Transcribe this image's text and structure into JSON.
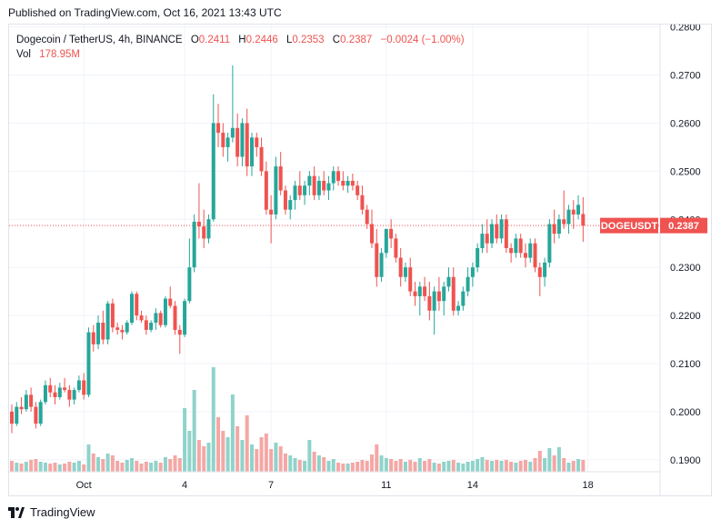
{
  "header": {
    "published": "Published on TradingView.com, Oct 16, 2021 13:43 UTC"
  },
  "legend": {
    "symbol": "Dogecoin / TetherUS, 4h, BINANCE",
    "open_label": "O",
    "open": "0.2411",
    "high_label": "H",
    "high": "0.2446",
    "low_label": "L",
    "low": "0.2353",
    "close_label": "C",
    "close": "0.2387",
    "change": "−0.0024 (−1.00%)",
    "vol_label": "Vol",
    "vol": "178.95M"
  },
  "price_tag": {
    "symbol": "DOGEUSDT",
    "price": "0.2387"
  },
  "footer": {
    "brand": "TradingView"
  },
  "colors": {
    "up": "#26a69a",
    "down": "#ef5350",
    "up_vol": "#8fd3ca",
    "down_vol": "#f4a7a5",
    "grid": "#f0f3fa"
  },
  "chart_data": {
    "type": "candlestick",
    "y_ticks": [
      "0.2800",
      "0.2700",
      "0.2600",
      "0.2500",
      "0.2400",
      "0.2300",
      "0.2200",
      "0.2100",
      "0.2000",
      "0.1900"
    ],
    "ylim": [
      0.1875,
      0.2805
    ],
    "x_ticks": [
      {
        "label": "Oct",
        "index": 15
      },
      {
        "label": "4",
        "index": 36
      },
      {
        "label": "7",
        "index": 54
      },
      {
        "label": "11",
        "index": 78
      },
      {
        "label": "14",
        "index": 96
      },
      {
        "label": "18",
        "index": 120
      }
    ],
    "last_price": 0.2387,
    "candles": [
      [
        0.2,
        0.2015,
        0.1955,
        0.1975,
        1.2
      ],
      [
        0.1975,
        0.202,
        0.197,
        0.201,
        1.0
      ],
      [
        0.201,
        0.203,
        0.1995,
        0.2005,
        0.9
      ],
      [
        0.2005,
        0.2045,
        0.2,
        0.2035,
        1.1
      ],
      [
        0.2035,
        0.205,
        0.2,
        0.201,
        1.3
      ],
      [
        0.201,
        0.202,
        0.1965,
        0.1975,
        1.4
      ],
      [
        0.1975,
        0.2025,
        0.197,
        0.202,
        1.1
      ],
      [
        0.202,
        0.2065,
        0.2015,
        0.2055,
        1.0
      ],
      [
        0.2055,
        0.207,
        0.203,
        0.204,
        0.9
      ],
      [
        0.204,
        0.2055,
        0.2015,
        0.203,
        1.0
      ],
      [
        0.203,
        0.206,
        0.2025,
        0.205,
        0.8
      ],
      [
        0.205,
        0.207,
        0.204,
        0.2045,
        0.9
      ],
      [
        0.2045,
        0.2055,
        0.201,
        0.2025,
        1.1
      ],
      [
        0.2025,
        0.205,
        0.2015,
        0.2045,
        1.0
      ],
      [
        0.2045,
        0.2075,
        0.204,
        0.2065,
        1.2
      ],
      [
        0.2065,
        0.208,
        0.2025,
        0.2035,
        0.8
      ],
      [
        0.2035,
        0.2175,
        0.203,
        0.2165,
        3.0
      ],
      [
        0.2165,
        0.218,
        0.2125,
        0.214,
        2.0
      ],
      [
        0.214,
        0.22,
        0.213,
        0.2185,
        1.6
      ],
      [
        0.2185,
        0.221,
        0.214,
        0.215,
        1.4
      ],
      [
        0.215,
        0.223,
        0.214,
        0.2225,
        2.0
      ],
      [
        0.2225,
        0.2235,
        0.2165,
        0.2175,
        1.8
      ],
      [
        0.2175,
        0.2185,
        0.216,
        0.217,
        1.2
      ],
      [
        0.217,
        0.218,
        0.215,
        0.2165,
        1.0
      ],
      [
        0.2165,
        0.219,
        0.216,
        0.2185,
        1.3
      ],
      [
        0.2185,
        0.225,
        0.218,
        0.2245,
        1.5
      ],
      [
        0.2245,
        0.225,
        0.219,
        0.22,
        1.2
      ],
      [
        0.22,
        0.221,
        0.2185,
        0.219,
        0.9
      ],
      [
        0.219,
        0.22,
        0.216,
        0.217,
        1.1
      ],
      [
        0.217,
        0.219,
        0.2165,
        0.2185,
        1.0
      ],
      [
        0.2185,
        0.2215,
        0.217,
        0.2205,
        1.2
      ],
      [
        0.2205,
        0.221,
        0.2175,
        0.218,
        1.0
      ],
      [
        0.218,
        0.224,
        0.2175,
        0.2235,
        1.6
      ],
      [
        0.2235,
        0.226,
        0.2215,
        0.222,
        1.4
      ],
      [
        0.222,
        0.223,
        0.216,
        0.217,
        1.8
      ],
      [
        0.217,
        0.218,
        0.212,
        0.216,
        1.5
      ],
      [
        0.216,
        0.2235,
        0.2155,
        0.223,
        7.0
      ],
      [
        0.223,
        0.236,
        0.2225,
        0.23,
        4.5
      ],
      [
        0.23,
        0.241,
        0.229,
        0.2395,
        9.0
      ],
      [
        0.2395,
        0.2475,
        0.236,
        0.2385,
        3.5
      ],
      [
        0.2385,
        0.242,
        0.234,
        0.236,
        2.8
      ],
      [
        0.236,
        0.241,
        0.235,
        0.24,
        3.2
      ],
      [
        0.24,
        0.266,
        0.2395,
        0.26,
        11.5
      ],
      [
        0.26,
        0.264,
        0.255,
        0.258,
        6.0
      ],
      [
        0.258,
        0.26,
        0.253,
        0.255,
        4.5
      ],
      [
        0.255,
        0.258,
        0.252,
        0.257,
        3.8
      ],
      [
        0.257,
        0.272,
        0.256,
        0.259,
        8.5
      ],
      [
        0.259,
        0.262,
        0.251,
        0.253,
        5.0
      ],
      [
        0.253,
        0.261,
        0.251,
        0.26,
        3.5
      ],
      [
        0.26,
        0.263,
        0.249,
        0.251,
        6.2
      ],
      [
        0.251,
        0.258,
        0.249,
        0.257,
        3.0
      ],
      [
        0.257,
        0.258,
        0.253,
        0.255,
        2.5
      ],
      [
        0.255,
        0.257,
        0.249,
        0.25,
        3.8
      ],
      [
        0.25,
        0.252,
        0.241,
        0.242,
        4.2
      ],
      [
        0.242,
        0.245,
        0.235,
        0.241,
        2.5
      ],
      [
        0.241,
        0.253,
        0.24,
        0.251,
        3.2
      ],
      [
        0.251,
        0.254,
        0.245,
        0.246,
        2.8
      ],
      [
        0.246,
        0.247,
        0.241,
        0.242,
        2.0
      ],
      [
        0.242,
        0.245,
        0.24,
        0.244,
        1.8
      ],
      [
        0.244,
        0.248,
        0.242,
        0.247,
        1.5
      ],
      [
        0.247,
        0.25,
        0.244,
        0.245,
        1.3
      ],
      [
        0.245,
        0.248,
        0.243,
        0.247,
        1.2
      ],
      [
        0.247,
        0.25,
        0.245,
        0.249,
        3.5
      ],
      [
        0.249,
        0.251,
        0.244,
        0.245,
        2.2
      ],
      [
        0.245,
        0.249,
        0.244,
        0.248,
        1.8
      ],
      [
        0.248,
        0.25,
        0.245,
        0.246,
        1.6
      ],
      [
        0.246,
        0.249,
        0.244,
        0.2475,
        1.2
      ],
      [
        0.2475,
        0.251,
        0.246,
        0.25,
        1.4
      ],
      [
        0.25,
        0.251,
        0.247,
        0.248,
        1.0
      ],
      [
        0.248,
        0.25,
        0.246,
        0.247,
        0.9
      ],
      [
        0.247,
        0.249,
        0.2455,
        0.248,
        0.9
      ],
      [
        0.248,
        0.2495,
        0.246,
        0.247,
        1.0
      ],
      [
        0.247,
        0.248,
        0.244,
        0.245,
        1.1
      ],
      [
        0.245,
        0.247,
        0.241,
        0.242,
        1.3
      ],
      [
        0.242,
        0.243,
        0.238,
        0.239,
        1.2
      ],
      [
        0.239,
        0.242,
        0.234,
        0.235,
        1.9
      ],
      [
        0.235,
        0.238,
        0.226,
        0.228,
        3.0
      ],
      [
        0.228,
        0.234,
        0.227,
        0.233,
        1.8
      ],
      [
        0.233,
        0.238,
        0.232,
        0.238,
        1.5
      ],
      [
        0.238,
        0.24,
        0.234,
        0.236,
        1.4
      ],
      [
        0.236,
        0.237,
        0.231,
        0.232,
        1.2
      ],
      [
        0.232,
        0.234,
        0.226,
        0.228,
        1.4
      ],
      [
        0.228,
        0.231,
        0.227,
        0.23,
        1.1
      ],
      [
        0.23,
        0.232,
        0.224,
        0.225,
        1.3
      ],
      [
        0.225,
        0.227,
        0.222,
        0.224,
        1.1
      ],
      [
        0.224,
        0.227,
        0.22,
        0.226,
        1.5
      ],
      [
        0.226,
        0.228,
        0.223,
        0.224,
        1.2
      ],
      [
        0.224,
        0.227,
        0.219,
        0.221,
        1.4
      ],
      [
        0.221,
        0.226,
        0.216,
        0.225,
        1.0
      ],
      [
        0.225,
        0.228,
        0.221,
        0.223,
        0.9
      ],
      [
        0.223,
        0.227,
        0.22,
        0.226,
        1.1
      ],
      [
        0.226,
        0.23,
        0.225,
        0.228,
        1.2
      ],
      [
        0.228,
        0.23,
        0.22,
        0.221,
        1.3
      ],
      [
        0.221,
        0.223,
        0.22,
        0.222,
        1.0
      ],
      [
        0.222,
        0.226,
        0.221,
        0.225,
        0.9
      ],
      [
        0.225,
        0.23,
        0.224,
        0.228,
        1.1
      ],
      [
        0.228,
        0.231,
        0.226,
        0.23,
        1.2
      ],
      [
        0.23,
        0.235,
        0.229,
        0.234,
        1.4
      ],
      [
        0.234,
        0.239,
        0.233,
        0.237,
        1.6
      ],
      [
        0.237,
        0.24,
        0.233,
        0.235,
        1.3
      ],
      [
        0.235,
        0.24,
        0.234,
        0.239,
        1.2
      ],
      [
        0.239,
        0.241,
        0.235,
        0.236,
        1.3
      ],
      [
        0.236,
        0.241,
        0.235,
        0.24,
        1.2
      ],
      [
        0.24,
        0.241,
        0.233,
        0.234,
        1.3
      ],
      [
        0.234,
        0.235,
        0.231,
        0.233,
        1.1
      ],
      [
        0.233,
        0.237,
        0.232,
        0.236,
        1.0
      ],
      [
        0.236,
        0.237,
        0.232,
        0.233,
        1.2
      ],
      [
        0.233,
        0.235,
        0.23,
        0.232,
        1.3
      ],
      [
        0.232,
        0.236,
        0.231,
        0.235,
        1.1
      ],
      [
        0.235,
        0.236,
        0.229,
        0.23,
        1.5
      ],
      [
        0.23,
        0.231,
        0.224,
        0.228,
        2.3
      ],
      [
        0.228,
        0.232,
        0.226,
        0.231,
        1.5
      ],
      [
        0.231,
        0.24,
        0.23,
        0.239,
        2.6
      ],
      [
        0.239,
        0.242,
        0.235,
        0.237,
        1.8
      ],
      [
        0.237,
        0.241,
        0.236,
        0.24,
        2.7
      ],
      [
        0.24,
        0.246,
        0.238,
        0.239,
        1.5
      ],
      [
        0.239,
        0.243,
        0.237,
        0.242,
        1.0
      ],
      [
        0.242,
        0.244,
        0.238,
        0.241,
        1.2
      ],
      [
        0.241,
        0.245,
        0.24,
        0.243,
        1.4
      ],
      [
        0.2411,
        0.2446,
        0.2353,
        0.2387,
        1.3
      ]
    ]
  }
}
